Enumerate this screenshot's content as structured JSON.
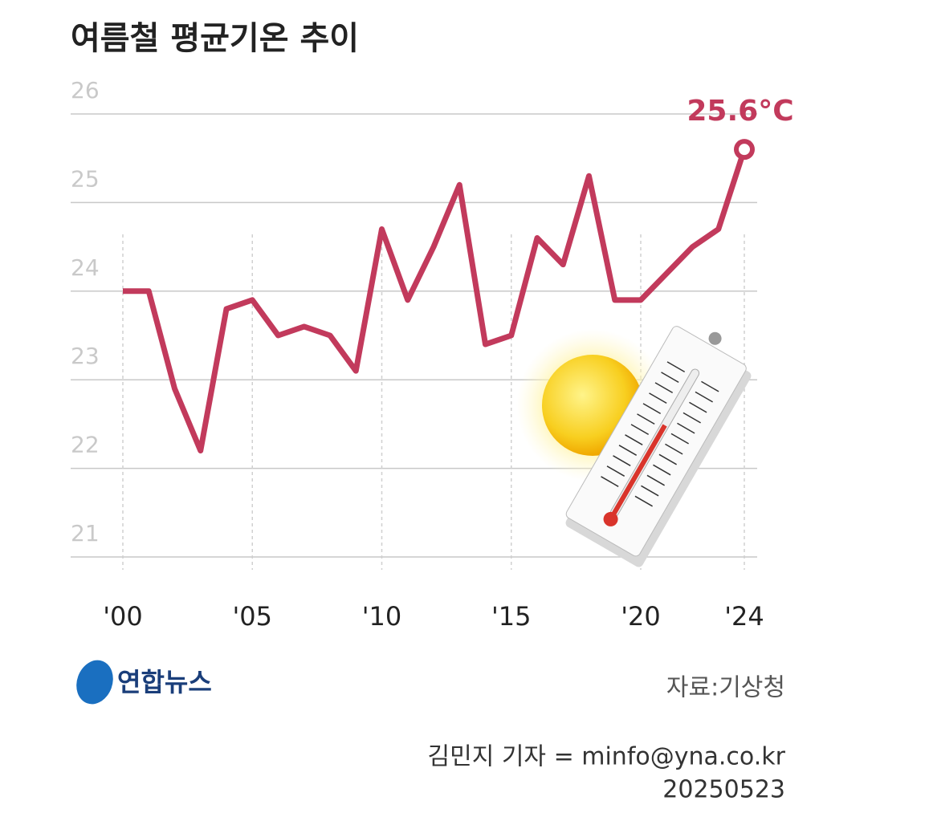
{
  "chart_data": {
    "type": "line",
    "title": "여름철 평균기온 추이",
    "x": [
      2000,
      2001,
      2002,
      2003,
      2004,
      2005,
      2006,
      2007,
      2008,
      2009,
      2010,
      2011,
      2012,
      2013,
      2014,
      2015,
      2016,
      2017,
      2018,
      2019,
      2020,
      2021,
      2022,
      2023,
      2024
    ],
    "values": [
      24.0,
      24.0,
      22.9,
      22.2,
      23.8,
      23.9,
      23.5,
      23.6,
      23.5,
      23.1,
      24.7,
      23.9,
      24.5,
      25.2,
      23.4,
      23.5,
      24.6,
      24.3,
      25.3,
      23.9,
      23.9,
      24.2,
      24.5,
      24.7,
      25.6
    ],
    "value_labels": [
      null,
      null,
      null,
      null,
      null,
      null,
      null,
      null,
      null,
      null,
      null,
      null,
      null,
      null,
      null,
      null,
      null,
      null,
      null,
      null,
      null,
      null,
      null,
      null,
      "25.6°C"
    ],
    "color": "#c23a5c",
    "xlim": [
      2000,
      2024
    ],
    "xticks": [
      {
        "value": 2000,
        "label": "'00"
      },
      {
        "value": 2005,
        "label": "'05"
      },
      {
        "value": 2010,
        "label": "'10"
      },
      {
        "value": 2015,
        "label": "'15"
      },
      {
        "value": 2020,
        "label": "'20"
      },
      {
        "value": 2024,
        "label": "'24"
      }
    ],
    "ylim": [
      21,
      26
    ],
    "yticks": [
      21,
      22,
      23,
      24,
      25,
      26
    ],
    "grid": true,
    "source": "자료:기상청"
  },
  "logo": "연합뉴스",
  "credit": "김민지 기자 = minfo@yna.co.kr",
  "date": "20250523"
}
